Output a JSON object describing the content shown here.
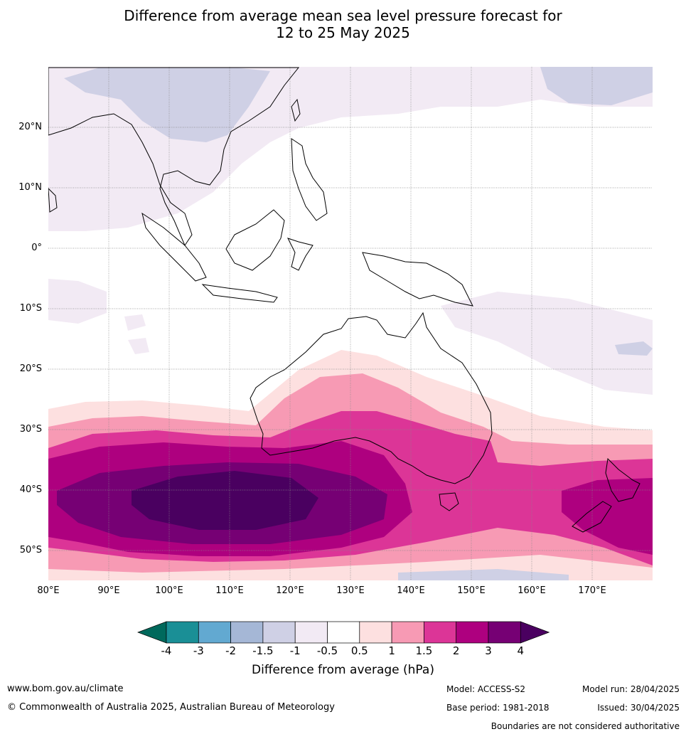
{
  "title_line1": "Difference from average mean sea level pressure forecast for",
  "title_line2": "12 to 25 May 2025",
  "lat_labels": [
    "20°N",
    "10°N",
    "0°",
    "10°S",
    "20°S",
    "30°S",
    "40°S",
    "50°S"
  ],
  "lon_labels": [
    "80°E",
    "90°E",
    "100°E",
    "110°E",
    "120°E",
    "130°E",
    "140°E",
    "150°E",
    "160°E",
    "170°E"
  ],
  "colorbar": {
    "title": "Difference from average (hPa)",
    "ticks": [
      "-4",
      "-3",
      "-2",
      "-1.5",
      "-1",
      "-0.5",
      "0.5",
      "1",
      "1.5",
      "2",
      "3",
      "4"
    ],
    "colors": [
      "#1a8f96",
      "#62a9d1",
      "#a5b7d6",
      "#cfd0e5",
      "#f2eaf4",
      "#ffffff",
      "#fde0e0",
      "#f79ab4",
      "#dc3597",
      "#ae007f",
      "#760074"
    ],
    "under_color": "#00695c",
    "over_color": "#4a0060"
  },
  "footer": {
    "website": "www.bom.gov.au/climate",
    "copyright": "© Commonwealth of Australia 2025, Australian Bureau of Meteorology",
    "model": "Model: ACCESS-S2",
    "model_run": "Model run: 28/04/2025",
    "base_period": "Base period: 1981-2018",
    "issued": "Issued: 30/04/2025",
    "disclaimer": "Boundaries are not considered authoritative"
  }
}
